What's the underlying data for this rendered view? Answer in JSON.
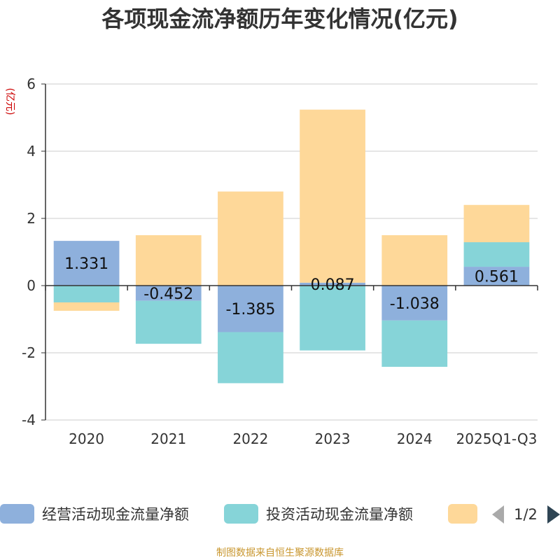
{
  "chart_data": {
    "type": "bar",
    "stacked": true,
    "title": "各项现金流净额历年变化情况(亿元)",
    "ylabel": "(亿元)",
    "xlabel": "",
    "categories": [
      "2020",
      "2021",
      "2022",
      "2023",
      "2024",
      "2025Q1-Q3"
    ],
    "ylim": [
      -4,
      6
    ],
    "yticks": [
      6,
      4,
      2,
      0,
      -2,
      -4
    ],
    "grid": true,
    "series": [
      {
        "name": "经营活动现金流量净额",
        "color": "#8eb0dc",
        "values": [
          1.331,
          -0.452,
          -1.385,
          0.087,
          -1.038,
          0.561
        ],
        "labels": [
          "1.331",
          "-0.452",
          "-1.385",
          "0.087",
          "-1.038",
          "0.561"
        ]
      },
      {
        "name": "投资活动现金流量净额",
        "color": "#86d4d8",
        "values": [
          -0.5,
          -1.28,
          -1.52,
          -1.93,
          -1.38,
          0.73
        ]
      },
      {
        "name": "",
        "color": "#fed899",
        "values": [
          -0.25,
          1.5,
          2.8,
          5.15,
          1.5,
          1.11
        ]
      }
    ],
    "legend": {
      "position": "bottom",
      "page_label": "1/2",
      "prev_icon": "triangle-left-icon",
      "next_icon": "triangle-right-icon"
    }
  },
  "footer": "制图数据来自恒生聚源数据库"
}
